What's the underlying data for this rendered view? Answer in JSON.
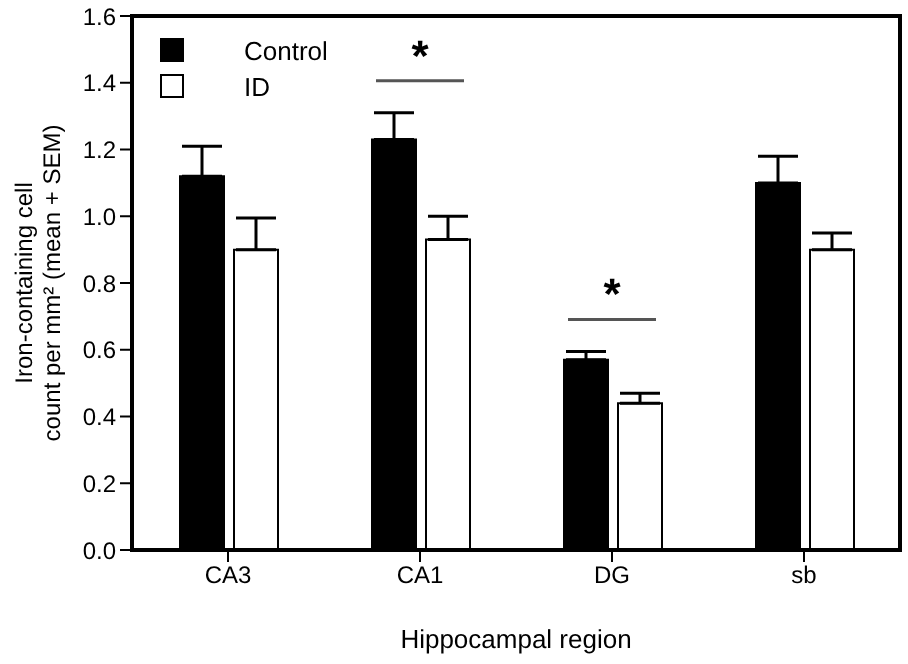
{
  "chart_data": {
    "type": "bar",
    "xlabel": "Hippocampal region",
    "ylabel": "Iron-containing cell count per mm² (mean + SEM)",
    "categories": [
      "CA3",
      "CA1",
      "DG",
      "sb"
    ],
    "series": [
      {
        "name": "Control",
        "color": "#000000",
        "values": [
          1.12,
          1.23,
          0.57,
          1.1
        ],
        "errors": [
          [
            1.12,
            1.21
          ],
          [
            1.23,
            1.31
          ],
          [
            0.57,
            0.595
          ],
          [
            1.1,
            1.18
          ]
        ]
      },
      {
        "name": "ID",
        "color": "#ffffff",
        "values": [
          0.9,
          0.93,
          0.44,
          0.9
        ],
        "errors": [
          [
            0.9,
            0.995
          ],
          [
            0.93,
            1.0
          ],
          [
            0.44,
            0.47
          ],
          [
            0.9,
            0.95
          ]
        ]
      }
    ],
    "ylim": [
      0,
      1.6
    ],
    "yticks": [
      {
        "value": 0,
        "label": "0.0"
      },
      {
        "value": 0.2,
        "label": "0.2"
      },
      {
        "value": 0.4,
        "label": "0.4"
      },
      {
        "value": 0.6,
        "label": "0.6"
      },
      {
        "value": 0.8,
        "label": "0.8"
      },
      {
        "value": 1,
        "label": "1.0"
      },
      {
        "value": 1.2,
        "label": "1.2"
      },
      {
        "value": 1.4,
        "label": "1.4"
      },
      {
        "value": 1.6,
        "label": "1.6"
      }
    ],
    "grid": false,
    "legend": "top left",
    "annotations": [
      "*",
      "*"
    ]
  }
}
